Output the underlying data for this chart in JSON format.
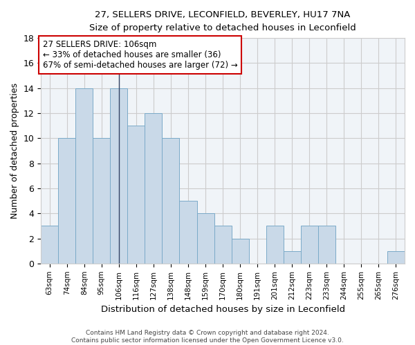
{
  "title_line1": "27, SELLERS DRIVE, LECONFIELD, BEVERLEY, HU17 7NA",
  "title_line2": "Size of property relative to detached houses in Leconfield",
  "xlabel": "Distribution of detached houses by size in Leconfield",
  "ylabel": "Number of detached properties",
  "categories": [
    "63sqm",
    "74sqm",
    "84sqm",
    "95sqm",
    "106sqm",
    "116sqm",
    "127sqm",
    "138sqm",
    "148sqm",
    "159sqm",
    "170sqm",
    "180sqm",
    "191sqm",
    "201sqm",
    "212sqm",
    "223sqm",
    "233sqm",
    "244sqm",
    "255sqm",
    "265sqm",
    "276sqm"
  ],
  "values": [
    3,
    10,
    14,
    10,
    14,
    11,
    12,
    10,
    5,
    4,
    3,
    2,
    0,
    3,
    1,
    3,
    3,
    0,
    0,
    0,
    1
  ],
  "bar_color": "#c9d9e8",
  "bar_edge_color": "#7aaac8",
  "highlight_index": 4,
  "highlight_line_color": "#334466",
  "ylim": [
    0,
    18
  ],
  "yticks": [
    0,
    2,
    4,
    6,
    8,
    10,
    12,
    14,
    16,
    18
  ],
  "grid_color": "#cccccc",
  "annotation_line1": "27 SELLERS DRIVE: 106sqm",
  "annotation_line2": "← 33% of detached houses are smaller (36)",
  "annotation_line3": "67% of semi-detached houses are larger (72) →",
  "annotation_box_color": "#ffffff",
  "annotation_box_edge": "#cc0000",
  "footer_line1": "Contains HM Land Registry data © Crown copyright and database right 2024.",
  "footer_line2": "Contains public sector information licensed under the Open Government Licence v3.0.",
  "bg_color": "#f0f4f8"
}
